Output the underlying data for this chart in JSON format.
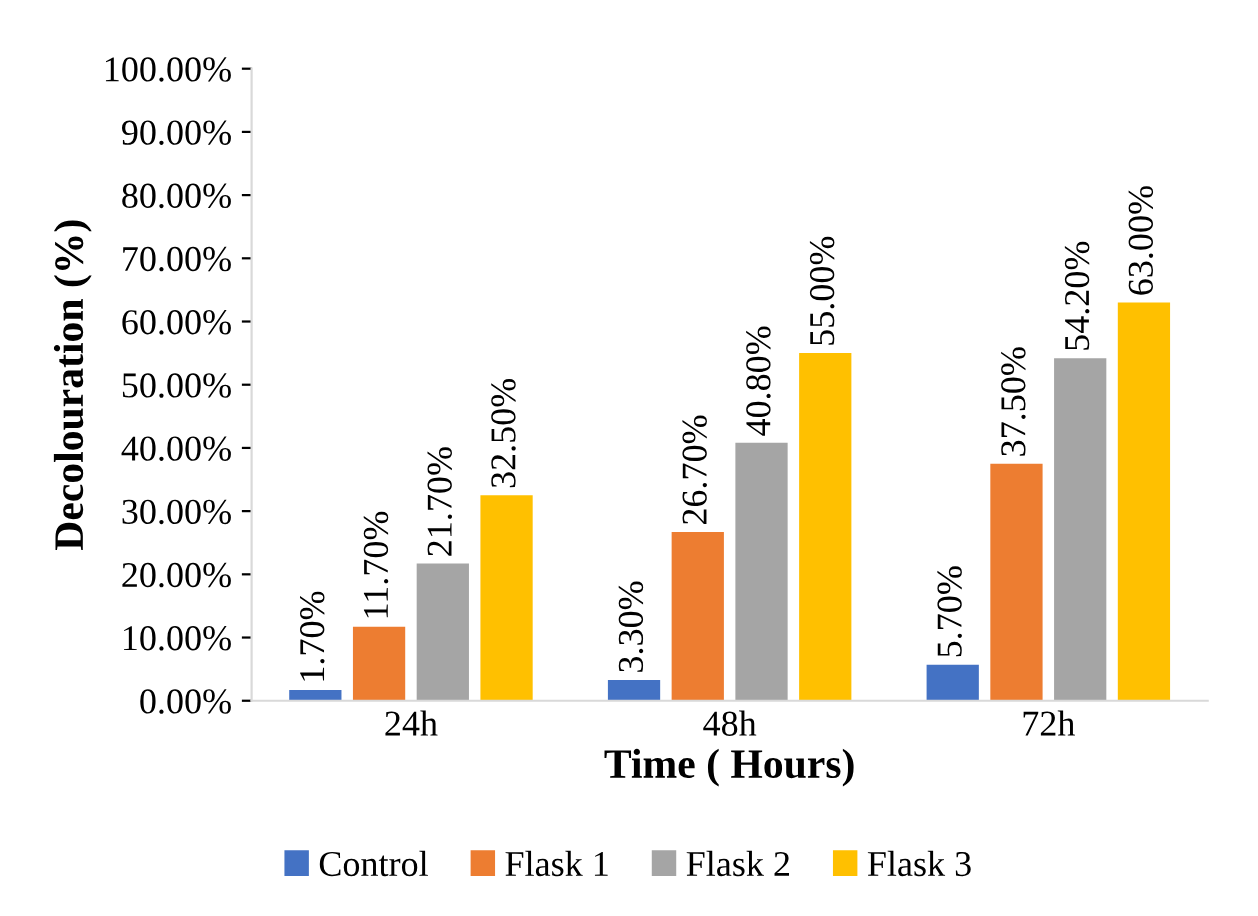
{
  "chart_data": {
    "type": "bar",
    "xlabel": "Time ( Hours)",
    "ylabel": "Decolouration (%)",
    "categories": [
      "24h",
      "48h",
      "72h"
    ],
    "series": [
      {
        "name": "Control",
        "color": "#4472c4",
        "values": [
          1.7,
          3.3,
          5.7
        ],
        "value_labels": [
          "1.70%",
          "3.30%",
          "5.70%"
        ]
      },
      {
        "name": "Flask 1",
        "color": "#ed7d31",
        "values": [
          11.7,
          26.7,
          37.5
        ],
        "value_labels": [
          "11.70%",
          "26.70%",
          "37.50%"
        ]
      },
      {
        "name": "Flask 2",
        "color": "#a5a5a5",
        "values": [
          21.7,
          40.8,
          54.2
        ],
        "value_labels": [
          "21.70%",
          "40.80%",
          "54.20%"
        ]
      },
      {
        "name": "Flask 3",
        "color": "#ffc000",
        "values": [
          32.5,
          55.0,
          63.0
        ],
        "value_labels": [
          "32.50%",
          "55.00%",
          "63.00%"
        ]
      }
    ],
    "ylim": [
      0,
      100
    ],
    "yticks": [
      {
        "value": 0,
        "label": "0.00%"
      },
      {
        "value": 10,
        "label": "10.00%"
      },
      {
        "value": 20,
        "label": "20.00%"
      },
      {
        "value": 30,
        "label": "30.00%"
      },
      {
        "value": 40,
        "label": "40.00%"
      },
      {
        "value": 50,
        "label": "50.00%"
      },
      {
        "value": 60,
        "label": "60.00%"
      },
      {
        "value": 70,
        "label": "70.00%"
      },
      {
        "value": 80,
        "label": "80.00%"
      },
      {
        "value": 90,
        "label": "90.00%"
      },
      {
        "value": 100,
        "label": "100.00%"
      }
    ],
    "grid": false,
    "legend": "bottom"
  }
}
